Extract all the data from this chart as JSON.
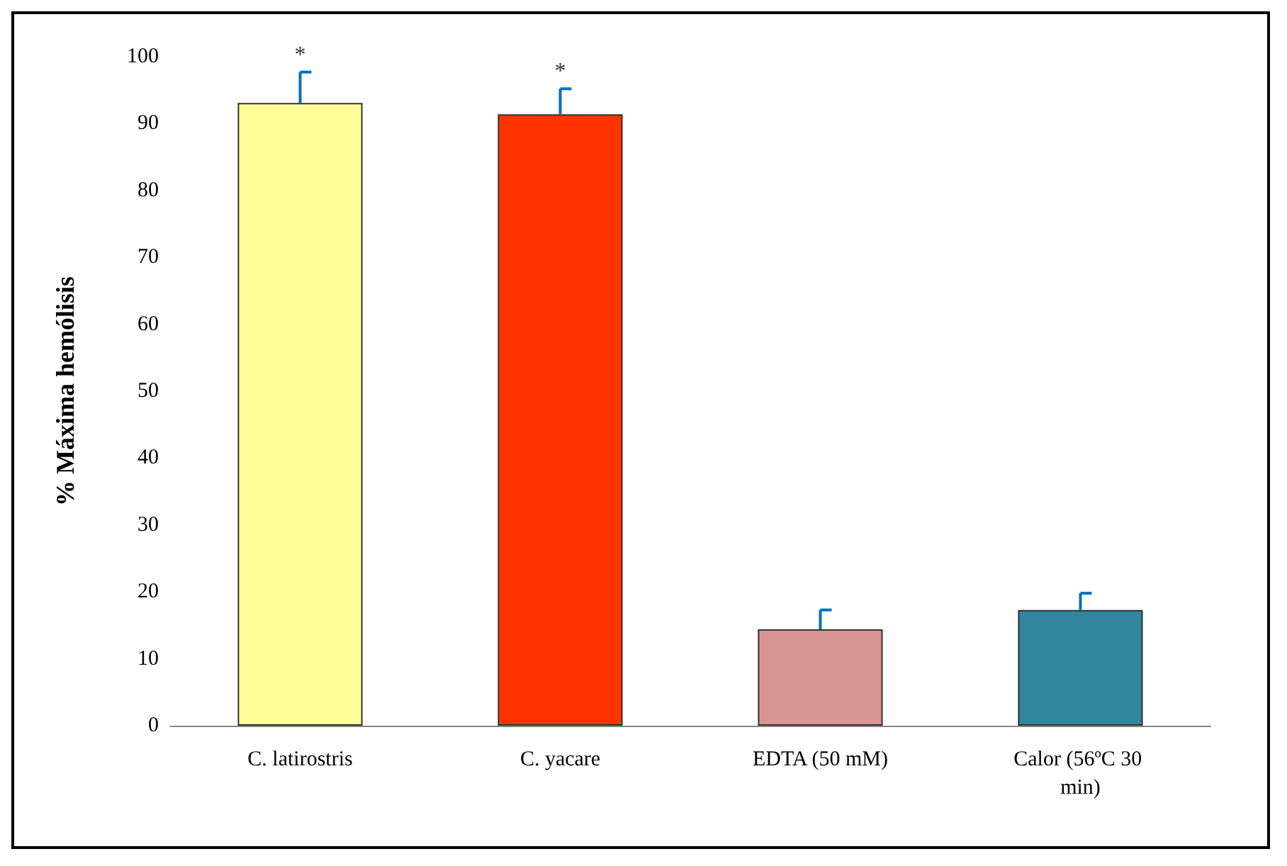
{
  "chart_data": {
    "type": "bar",
    "ylabel": "% Máxima hemólisis",
    "categories": [
      "C. latirostris",
      "C. yacare",
      "EDTA (50 mM)",
      "Calor (56ºC 30 min)"
    ],
    "values": [
      93.1,
      91.4,
      14.4,
      17.3
    ],
    "colors": [
      "#ffff99",
      "#ff3300",
      "#d99594",
      "#31859c"
    ],
    "errors": [
      [
        93.1,
        97.7
      ],
      [
        91.4,
        95.2
      ],
      [
        14.4,
        17.3
      ],
      [
        17.3,
        19.8
      ]
    ],
    "ylim": [
      0,
      100
    ],
    "yticks": [
      0,
      10,
      20,
      30,
      40,
      50,
      60,
      70,
      80,
      90,
      100
    ],
    "annotations": [
      {
        "text": "*",
        "x": "C. latirostris",
        "y": 97.7
      },
      {
        "text": "*",
        "x": "C. yacare",
        "y": 95.2
      }
    ],
    "grid": false
  }
}
